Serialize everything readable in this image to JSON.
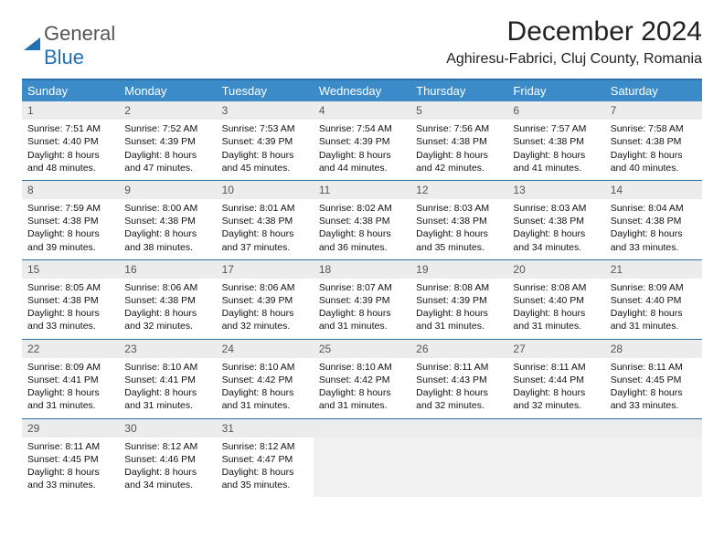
{
  "logo": {
    "text1": "General",
    "text2": "Blue",
    "icon_color": "#2271b6"
  },
  "title": "December 2024",
  "location": "Aghiresu-Fabrici, Cluj County, Romania",
  "colors": {
    "header_bg": "#3b8bc8",
    "header_border": "#2a6fa8",
    "daynum_bg": "#ececec",
    "text": "#111111",
    "muted": "#555555"
  },
  "day_headers": [
    "Sunday",
    "Monday",
    "Tuesday",
    "Wednesday",
    "Thursday",
    "Friday",
    "Saturday"
  ],
  "weeks": [
    [
      {
        "n": "1",
        "sr": "7:51 AM",
        "ss": "4:40 PM",
        "d1": "Daylight: 8 hours",
        "d2": "and 48 minutes."
      },
      {
        "n": "2",
        "sr": "7:52 AM",
        "ss": "4:39 PM",
        "d1": "Daylight: 8 hours",
        "d2": "and 47 minutes."
      },
      {
        "n": "3",
        "sr": "7:53 AM",
        "ss": "4:39 PM",
        "d1": "Daylight: 8 hours",
        "d2": "and 45 minutes."
      },
      {
        "n": "4",
        "sr": "7:54 AM",
        "ss": "4:39 PM",
        "d1": "Daylight: 8 hours",
        "d2": "and 44 minutes."
      },
      {
        "n": "5",
        "sr": "7:56 AM",
        "ss": "4:38 PM",
        "d1": "Daylight: 8 hours",
        "d2": "and 42 minutes."
      },
      {
        "n": "6",
        "sr": "7:57 AM",
        "ss": "4:38 PM",
        "d1": "Daylight: 8 hours",
        "d2": "and 41 minutes."
      },
      {
        "n": "7",
        "sr": "7:58 AM",
        "ss": "4:38 PM",
        "d1": "Daylight: 8 hours",
        "d2": "and 40 minutes."
      }
    ],
    [
      {
        "n": "8",
        "sr": "7:59 AM",
        "ss": "4:38 PM",
        "d1": "Daylight: 8 hours",
        "d2": "and 39 minutes."
      },
      {
        "n": "9",
        "sr": "8:00 AM",
        "ss": "4:38 PM",
        "d1": "Daylight: 8 hours",
        "d2": "and 38 minutes."
      },
      {
        "n": "10",
        "sr": "8:01 AM",
        "ss": "4:38 PM",
        "d1": "Daylight: 8 hours",
        "d2": "and 37 minutes."
      },
      {
        "n": "11",
        "sr": "8:02 AM",
        "ss": "4:38 PM",
        "d1": "Daylight: 8 hours",
        "d2": "and 36 minutes."
      },
      {
        "n": "12",
        "sr": "8:03 AM",
        "ss": "4:38 PM",
        "d1": "Daylight: 8 hours",
        "d2": "and 35 minutes."
      },
      {
        "n": "13",
        "sr": "8:03 AM",
        "ss": "4:38 PM",
        "d1": "Daylight: 8 hours",
        "d2": "and 34 minutes."
      },
      {
        "n": "14",
        "sr": "8:04 AM",
        "ss": "4:38 PM",
        "d1": "Daylight: 8 hours",
        "d2": "and 33 minutes."
      }
    ],
    [
      {
        "n": "15",
        "sr": "8:05 AM",
        "ss": "4:38 PM",
        "d1": "Daylight: 8 hours",
        "d2": "and 33 minutes."
      },
      {
        "n": "16",
        "sr": "8:06 AM",
        "ss": "4:38 PM",
        "d1": "Daylight: 8 hours",
        "d2": "and 32 minutes."
      },
      {
        "n": "17",
        "sr": "8:06 AM",
        "ss": "4:39 PM",
        "d1": "Daylight: 8 hours",
        "d2": "and 32 minutes."
      },
      {
        "n": "18",
        "sr": "8:07 AM",
        "ss": "4:39 PM",
        "d1": "Daylight: 8 hours",
        "d2": "and 31 minutes."
      },
      {
        "n": "19",
        "sr": "8:08 AM",
        "ss": "4:39 PM",
        "d1": "Daylight: 8 hours",
        "d2": "and 31 minutes."
      },
      {
        "n": "20",
        "sr": "8:08 AM",
        "ss": "4:40 PM",
        "d1": "Daylight: 8 hours",
        "d2": "and 31 minutes."
      },
      {
        "n": "21",
        "sr": "8:09 AM",
        "ss": "4:40 PM",
        "d1": "Daylight: 8 hours",
        "d2": "and 31 minutes."
      }
    ],
    [
      {
        "n": "22",
        "sr": "8:09 AM",
        "ss": "4:41 PM",
        "d1": "Daylight: 8 hours",
        "d2": "and 31 minutes."
      },
      {
        "n": "23",
        "sr": "8:10 AM",
        "ss": "4:41 PM",
        "d1": "Daylight: 8 hours",
        "d2": "and 31 minutes."
      },
      {
        "n": "24",
        "sr": "8:10 AM",
        "ss": "4:42 PM",
        "d1": "Daylight: 8 hours",
        "d2": "and 31 minutes."
      },
      {
        "n": "25",
        "sr": "8:10 AM",
        "ss": "4:42 PM",
        "d1": "Daylight: 8 hours",
        "d2": "and 31 minutes."
      },
      {
        "n": "26",
        "sr": "8:11 AM",
        "ss": "4:43 PM",
        "d1": "Daylight: 8 hours",
        "d2": "and 32 minutes."
      },
      {
        "n": "27",
        "sr": "8:11 AM",
        "ss": "4:44 PM",
        "d1": "Daylight: 8 hours",
        "d2": "and 32 minutes."
      },
      {
        "n": "28",
        "sr": "8:11 AM",
        "ss": "4:45 PM",
        "d1": "Daylight: 8 hours",
        "d2": "and 33 minutes."
      }
    ],
    [
      {
        "n": "29",
        "sr": "8:11 AM",
        "ss": "4:45 PM",
        "d1": "Daylight: 8 hours",
        "d2": "and 33 minutes."
      },
      {
        "n": "30",
        "sr": "8:12 AM",
        "ss": "4:46 PM",
        "d1": "Daylight: 8 hours",
        "d2": "and 34 minutes."
      },
      {
        "n": "31",
        "sr": "8:12 AM",
        "ss": "4:47 PM",
        "d1": "Daylight: 8 hours",
        "d2": "and 35 minutes."
      },
      null,
      null,
      null,
      null
    ]
  ],
  "labels": {
    "sunrise_prefix": "Sunrise: ",
    "sunset_prefix": "Sunset: "
  }
}
